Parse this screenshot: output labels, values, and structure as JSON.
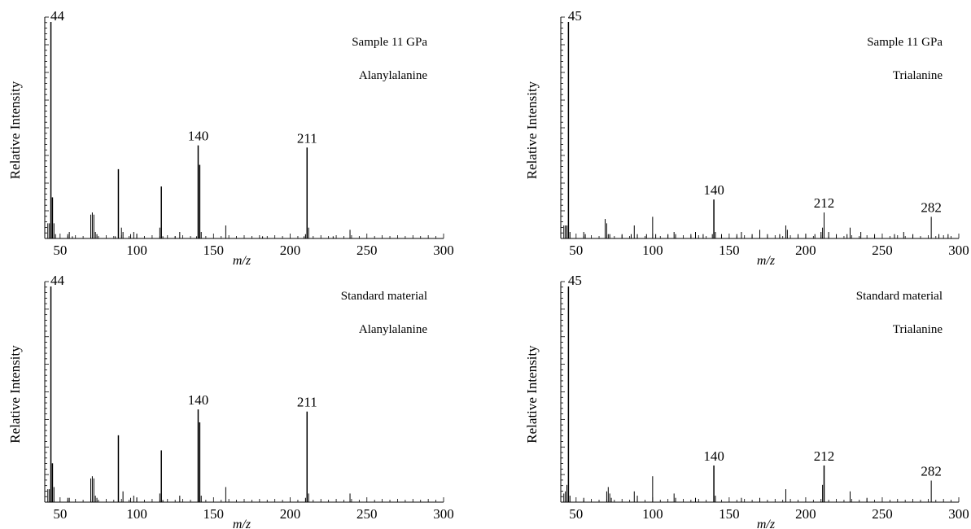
{
  "chart_data": [
    {
      "type": "bar",
      "panel": "top-left",
      "annotations": [
        "Sample 11 GPa",
        "Alanylalanine"
      ],
      "xlabel": "m/z",
      "ylabel": "Relative Intensity",
      "xlim": [
        40,
        300
      ],
      "ylim": [
        0,
        100
      ],
      "xticks": [
        50,
        100,
        150,
        200,
        250,
        300
      ],
      "peak_labels": [
        "44",
        "140",
        "211"
      ],
      "x": [
        42,
        43,
        44,
        45,
        46,
        47,
        55,
        56,
        58,
        70,
        71,
        72,
        73,
        74,
        86,
        88,
        90,
        91,
        96,
        98,
        100,
        115,
        116,
        117,
        125,
        128,
        139,
        140,
        141,
        142,
        158,
        182,
        209,
        210,
        211,
        212,
        228,
        239
      ],
      "values": [
        7,
        7,
        100,
        19,
        7,
        2,
        2,
        3,
        1,
        11,
        12,
        11,
        3,
        2,
        1,
        32,
        5,
        3,
        2,
        3,
        2,
        5,
        24,
        1,
        1,
        3,
        1,
        43,
        34,
        3,
        6,
        1,
        1,
        2,
        42,
        5,
        1,
        4
      ]
    },
    {
      "type": "bar",
      "panel": "top-right",
      "annotations": [
        "Sample 11 GPa",
        "Trialanine"
      ],
      "xlabel": "m/z",
      "ylabel": "Relative Intensity",
      "xlim": [
        40,
        300
      ],
      "ylim": [
        0,
        100
      ],
      "xticks": [
        50,
        100,
        150,
        200,
        250,
        300
      ],
      "peak_labels": [
        "45",
        "140",
        "212"
      ],
      "peak_label_282": "282",
      "x": [
        42,
        43,
        44,
        45,
        46,
        55,
        56,
        69,
        70,
        71,
        72,
        80,
        86,
        88,
        90,
        96,
        100,
        102,
        110,
        114,
        115,
        125,
        128,
        133,
        139,
        140,
        141,
        145,
        155,
        158,
        165,
        170,
        175,
        183,
        187,
        188,
        195,
        200,
        206,
        210,
        211,
        212,
        215,
        220,
        227,
        229,
        236,
        245,
        258,
        264,
        270,
        282,
        287,
        293
      ],
      "values": [
        6,
        6,
        6,
        100,
        3,
        3,
        2,
        9,
        7,
        2,
        2,
        2,
        2,
        6,
        2,
        2,
        10,
        2,
        2,
        3,
        2,
        2,
        3,
        2,
        2,
        18,
        3,
        2,
        2,
        3,
        2,
        4,
        2,
        2,
        6,
        4,
        2,
        2,
        2,
        3,
        5,
        12,
        3,
        2,
        2,
        5,
        3,
        2,
        2,
        3,
        2,
        10,
        2,
        2
      ]
    },
    {
      "type": "bar",
      "panel": "bottom-left",
      "annotations": [
        "Standard  material",
        "Alanylalanine"
      ],
      "xlabel": "m/z",
      "ylabel": "Relative Intensity",
      "xlim": [
        40,
        300
      ],
      "ylim": [
        0,
        100
      ],
      "xticks": [
        50,
        100,
        150,
        200,
        250,
        300
      ],
      "peak_labels": [
        "44",
        "140",
        "211"
      ],
      "x": [
        42,
        43,
        44,
        45,
        46,
        55,
        56,
        70,
        71,
        72,
        73,
        74,
        88,
        91,
        96,
        98,
        100,
        115,
        116,
        117,
        128,
        140,
        141,
        142,
        158,
        210,
        211,
        212,
        239
      ],
      "values": [
        6,
        6,
        100,
        18,
        7,
        2,
        2,
        11,
        12,
        11,
        3,
        2,
        31,
        5,
        2,
        3,
        2,
        4,
        24,
        1,
        3,
        43,
        37,
        3,
        7,
        2,
        42,
        4,
        4
      ]
    },
    {
      "type": "bar",
      "panel": "bottom-right",
      "annotations": [
        "Standard  material",
        "Trialanine"
      ],
      "xlabel": "m/z",
      "ylabel": "Relative Intensity",
      "xlim": [
        40,
        300
      ],
      "ylim": [
        0,
        100
      ],
      "xticks": [
        50,
        100,
        150,
        200,
        250,
        300
      ],
      "peak_labels": [
        "45",
        "140",
        "212"
      ],
      "peak_label_282": "282",
      "x": [
        42,
        43,
        44,
        45,
        46,
        55,
        70,
        71,
        72,
        73,
        88,
        90,
        100,
        114,
        115,
        128,
        140,
        141,
        158,
        170,
        187,
        211,
        212,
        229,
        240,
        282
      ],
      "values": [
        4,
        5,
        8,
        100,
        3,
        2,
        5,
        7,
        4,
        2,
        5,
        3,
        12,
        4,
        2,
        2,
        17,
        3,
        2,
        2,
        6,
        8,
        17,
        5,
        2,
        10
      ]
    }
  ]
}
